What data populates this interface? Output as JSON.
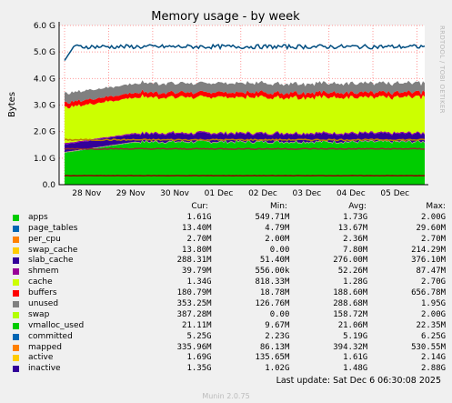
{
  "chart_data": {
    "type": "area",
    "title": "Memory usage - by week",
    "ylabel": "Bytes",
    "side_text": "RRDTOOL / TOBI OETIKER",
    "ylim": [
      0,
      6.0
    ],
    "yticks": [
      "0.0",
      "1.0 G",
      "2.0 G",
      "3.0 G",
      "4.0 G",
      "5.0 G",
      "6.0 G"
    ],
    "xticks": [
      "28 Nov",
      "29 Nov",
      "30 Nov",
      "01 Dec",
      "02 Dec",
      "03 Dec",
      "04 Dec",
      "05 Dec"
    ],
    "stacked_series": [
      {
        "name": "apps",
        "color": "#00cc00",
        "approx_level_G": 1.6
      },
      {
        "name": "page_tables",
        "color": "#0066b3",
        "approx_level_G": 0.013
      },
      {
        "name": "per_cpu",
        "color": "#ff8000",
        "approx_level_G": 0.003
      },
      {
        "name": "swap_cache",
        "color": "#ffcc00",
        "approx_level_G": 0.014
      },
      {
        "name": "slab_cache",
        "color": "#330099",
        "approx_level_G": 0.29
      },
      {
        "name": "shmem",
        "color": "#990099",
        "approx_level_G": 0.04
      },
      {
        "name": "cache",
        "color": "#ccff00",
        "approx_level_G": 1.34
      },
      {
        "name": "buffers",
        "color": "#ff0000",
        "approx_level_G": 0.18
      },
      {
        "name": "unused",
        "color": "#808080",
        "approx_level_G": 0.35
      }
    ],
    "line_series": [
      {
        "name": "committed",
        "color": "#004d80",
        "approx_level_G": 5.2
      },
      {
        "name": "mapped",
        "color": "#8c0000",
        "approx_level_G": 0.34
      },
      {
        "name": "active",
        "color": "#c08000",
        "approx_level_G": 1.69
      },
      {
        "name": "inactive",
        "color": "#8c3030",
        "approx_level_G": 1.35
      }
    ]
  },
  "legend": {
    "headers": [
      "Cur:",
      "Min:",
      "Avg:",
      "Max:"
    ],
    "rows": [
      {
        "name": "apps",
        "color": "#00cc00",
        "cur": "1.61G",
        "min": "549.71M",
        "avg": "1.73G",
        "max": "2.00G"
      },
      {
        "name": "page_tables",
        "color": "#0066b3",
        "cur": "13.40M",
        "min": "4.79M",
        "avg": "13.67M",
        "max": "29.60M"
      },
      {
        "name": "per_cpu",
        "color": "#ff8000",
        "cur": "2.70M",
        "min": "2.00M",
        "avg": "2.36M",
        "max": "2.70M"
      },
      {
        "name": "swap_cache",
        "color": "#ffcc00",
        "cur": "13.80M",
        "min": "0.00",
        "avg": "7.80M",
        "max": "214.29M"
      },
      {
        "name": "slab_cache",
        "color": "#330099",
        "cur": "288.31M",
        "min": "51.40M",
        "avg": "276.00M",
        "max": "376.10M"
      },
      {
        "name": "shmem",
        "color": "#990099",
        "cur": "39.79M",
        "min": "556.00k",
        "avg": "52.26M",
        "max": "87.47M"
      },
      {
        "name": "cache",
        "color": "#ccff00",
        "cur": "1.34G",
        "min": "818.33M",
        "avg": "1.28G",
        "max": "2.70G"
      },
      {
        "name": "buffers",
        "color": "#ff0000",
        "cur": "180.79M",
        "min": "18.78M",
        "avg": "188.60M",
        "max": "656.78M"
      },
      {
        "name": "unused",
        "color": "#808080",
        "cur": "353.25M",
        "min": "126.76M",
        "avg": "288.68M",
        "max": "1.95G"
      },
      {
        "name": "swap",
        "color": "#b3ff00",
        "cur": "387.28M",
        "min": "0.00",
        "avg": "158.72M",
        "max": "2.00G"
      },
      {
        "name": "vmalloc_used",
        "color": "#00cc00",
        "cur": "21.11M",
        "min": "9.67M",
        "avg": "21.06M",
        "max": "22.35M"
      },
      {
        "name": "committed",
        "color": "#0066b3",
        "cur": "5.25G",
        "min": "2.23G",
        "avg": "5.19G",
        "max": "6.25G"
      },
      {
        "name": "mapped",
        "color": "#ff8000",
        "cur": "335.96M",
        "min": "86.13M",
        "avg": "394.32M",
        "max": "530.55M"
      },
      {
        "name": "active",
        "color": "#ffcc00",
        "cur": "1.69G",
        "min": "135.65M",
        "avg": "1.61G",
        "max": "2.14G"
      },
      {
        "name": "inactive",
        "color": "#330099",
        "cur": "1.35G",
        "min": "1.02G",
        "avg": "1.48G",
        "max": "2.88G"
      }
    ]
  },
  "footer": {
    "last_update": "Last update: Sat Dec  6 06:30:08 2025",
    "munin": "Munin 2.0.75"
  }
}
